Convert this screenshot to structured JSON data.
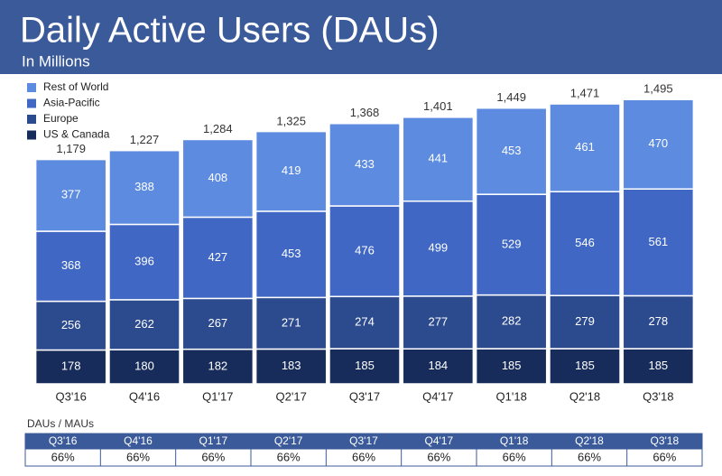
{
  "chart_data": {
    "type": "stacked_bar",
    "title": "Daily Active Users (DAUs)",
    "subtitle": "In Millions",
    "categories": [
      "Q3'16",
      "Q4'16",
      "Q1'17",
      "Q2'17",
      "Q3'17",
      "Q4'17",
      "Q1'18",
      "Q2'18",
      "Q3'18"
    ],
    "series": [
      {
        "name": "US & Canada",
        "color": "#172c5a",
        "values": [
          178,
          180,
          182,
          183,
          185,
          184,
          185,
          185,
          185
        ]
      },
      {
        "name": "Europe",
        "color": "#2c4a8e",
        "values": [
          256,
          262,
          267,
          271,
          274,
          277,
          282,
          279,
          278
        ]
      },
      {
        "name": "Asia-Pacific",
        "color": "#3f67c3",
        "values": [
          368,
          396,
          427,
          453,
          476,
          499,
          529,
          546,
          561
        ]
      },
      {
        "name": "Rest of World",
        "color": "#5c8be0",
        "values": [
          377,
          388,
          408,
          419,
          433,
          441,
          453,
          461,
          470
        ]
      }
    ],
    "totals": {
      "values": [
        1179,
        1227,
        1284,
        1325,
        1368,
        1401,
        1449,
        1471,
        1495
      ],
      "value_labels": [
        "1,179",
        "1,227",
        "1,284",
        "1,325",
        "1,368",
        "1,401",
        "1,449",
        "1,471",
        "1,495"
      ]
    }
  },
  "table": {
    "title": "DAUs / MAUs",
    "header": [
      "Q3'16",
      "Q4'16",
      "Q1'17",
      "Q2'17",
      "Q3'17",
      "Q4'17",
      "Q1'18",
      "Q2'18",
      "Q3'18"
    ],
    "row": [
      "66%",
      "66%",
      "66%",
      "66%",
      "66%",
      "66%",
      "66%",
      "66%",
      "66%"
    ]
  }
}
